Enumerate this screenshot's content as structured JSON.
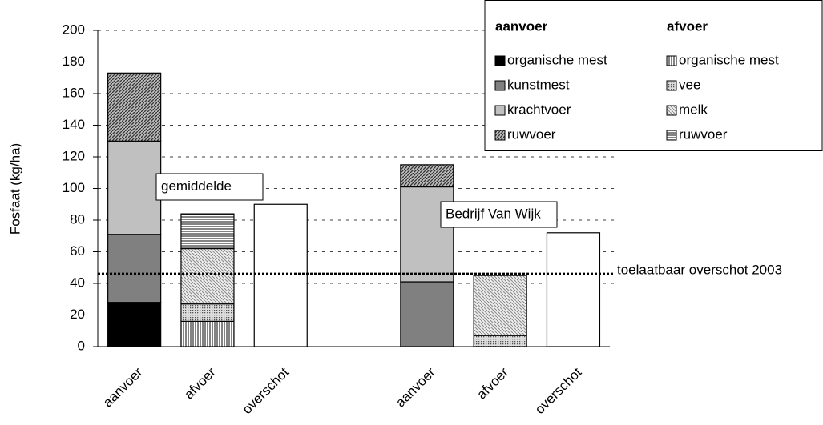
{
  "chart_data": {
    "type": "stacked-bar",
    "y_label": "Fosfaat (kg/ha)",
    "categories": [
      "aanvoer",
      "afvoer",
      "overschot",
      null,
      "aanvoer",
      "afvoer",
      "overschot"
    ],
    "legend_titles": [
      "aanvoer",
      "afvoer"
    ],
    "series": [
      {
        "name": "organische mest",
        "legend_column": 0,
        "color": "#000000",
        "pattern": "solid",
        "values": [
          28,
          null,
          null,
          null,
          0,
          null,
          null
        ]
      },
      {
        "name": "kunstmest",
        "legend_column": 0,
        "color": "#808080",
        "pattern": "solid",
        "values": [
          43,
          null,
          null,
          null,
          41,
          null,
          null
        ]
      },
      {
        "name": "krachtvoer",
        "legend_column": 0,
        "color": "#c0c0c0",
        "pattern": "solid",
        "values": [
          59,
          null,
          null,
          null,
          60,
          null,
          null
        ]
      },
      {
        "name": "ruwvoer",
        "legend_column": 0,
        "color": "#808080",
        "pattern": "diagonal-dense",
        "values": [
          43,
          null,
          null,
          null,
          14,
          null,
          null
        ]
      },
      {
        "name": "organische mest",
        "legend_column": 1,
        "color": "#606060",
        "pattern": "vertical",
        "values": [
          null,
          16,
          null,
          null,
          null,
          0,
          null
        ]
      },
      {
        "name": "vee",
        "legend_column": 1,
        "color": "#909090",
        "pattern": "dots",
        "values": [
          null,
          11,
          null,
          null,
          null,
          7,
          null
        ]
      },
      {
        "name": "melk",
        "legend_column": 1,
        "color": "#a0a0a0",
        "pattern": "diagonal-light",
        "values": [
          null,
          35,
          null,
          null,
          null,
          38,
          null
        ]
      },
      {
        "name": "ruwvoer",
        "legend_column": 1,
        "color": "#505050",
        "pattern": "horizontal",
        "values": [
          null,
          22,
          null,
          null,
          null,
          0,
          null
        ]
      },
      {
        "color": "#ffffff",
        "pattern": "solid",
        "values": [
          null,
          null,
          90,
          null,
          null,
          null,
          72
        ]
      }
    ],
    "threshold": {
      "value": 46,
      "label": "toelaatbaar overschot 2003"
    },
    "annotations": [
      "gemiddelde",
      "Bedrijf Van Wijk"
    ],
    "ylim": [
      0,
      200
    ],
    "yticks": [
      0,
      20,
      40,
      60,
      80,
      100,
      120,
      140,
      160,
      180,
      200
    ],
    "grid": true
  }
}
